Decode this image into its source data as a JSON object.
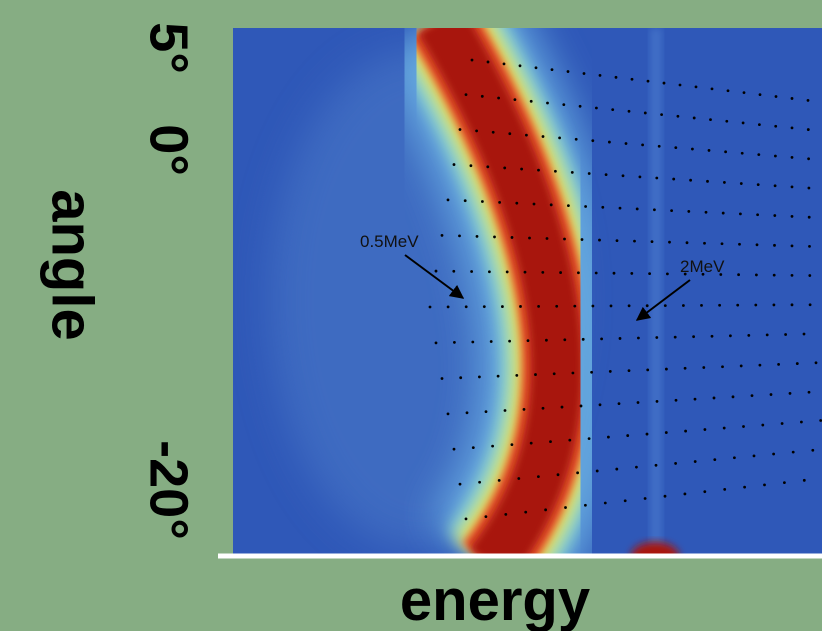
{
  "axes": {
    "y_label": "angle",
    "x_label": "energy",
    "y_ticks": [
      "5°",
      "0°",
      "-20°"
    ]
  },
  "annotations": [
    "0.5MeV",
    "2MeV"
  ]
}
